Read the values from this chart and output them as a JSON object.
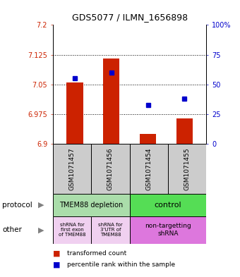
{
  "title": "GDS5077 / ILMN_1656898",
  "samples": [
    "GSM1071457",
    "GSM1071456",
    "GSM1071454",
    "GSM1071455"
  ],
  "red_values": [
    7.055,
    7.115,
    6.925,
    6.965
  ],
  "blue_values": [
    55,
    60,
    33,
    38
  ],
  "ylim_left": [
    6.9,
    7.2
  ],
  "ylim_right": [
    0,
    100
  ],
  "yticks_left": [
    6.9,
    6.975,
    7.05,
    7.125,
    7.2
  ],
  "yticks_right": [
    0,
    25,
    50,
    75,
    100
  ],
  "ytick_labels_left": [
    "6.9",
    "6.975",
    "7.05",
    "7.125",
    "7.2"
  ],
  "ytick_labels_right": [
    "0",
    "25",
    "50",
    "75",
    "100%"
  ],
  "bar_bottom": 6.9,
  "bar_width": 0.45,
  "protocol_labels": [
    "TMEM88 depletion",
    "control"
  ],
  "other_labels": [
    "shRNA for\nfirst exon\nof TMEM88",
    "shRNA for\n3'UTR of\nTMEM88",
    "non-targetting\nshRNA"
  ],
  "label_color_left": "#cc2200",
  "label_color_right": "#0000cc",
  "table_bg": "#cccccc",
  "proto_color_left": "#aaddaa",
  "proto_color_right": "#55dd55",
  "other_color_left": "#f0d0f0",
  "other_color_right": "#dd77dd",
  "red_marker": "#cc2200",
  "blue_marker": "#0000cc"
}
